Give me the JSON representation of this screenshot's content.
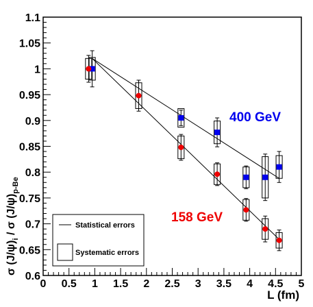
{
  "chart_data": {
    "type": "scatter",
    "xlabel": "L (fm)",
    "ylabel_parts": {
      "main": "σ (J/ψ)",
      "sub_i": "i",
      "mid": " / σ (J/ψ)",
      "sub_ref": "p-Be"
    },
    "xlim": [
      0,
      5
    ],
    "ylim": [
      0.6,
      1.1
    ],
    "x_ticks": [
      "0",
      "0.5",
      "1",
      "1.5",
      "2",
      "2.5",
      "3",
      "3.5",
      "4",
      "4.5",
      "5"
    ],
    "y_ticks": [
      "0.6",
      "0.65",
      "0.7",
      "0.75",
      "0.8",
      "0.85",
      "0.9",
      "0.95",
      "1",
      "1.05",
      "1.1"
    ],
    "legend": {
      "position": "bottom-left",
      "entries": [
        "Statistical errors",
        "Systematic errors"
      ]
    },
    "series": [
      {
        "name": "400 GeV",
        "color": "#0000ee",
        "marker": "square",
        "points": [
          {
            "x": 0.95,
            "y": 1.0,
            "stat": 0.035,
            "sys": 0.022
          },
          {
            "x": 2.67,
            "y": 0.905,
            "stat": 0.015,
            "sys": 0.018
          },
          {
            "x": 3.37,
            "y": 0.877,
            "stat": 0.028,
            "sys": 0.022
          },
          {
            "x": 3.93,
            "y": 0.79,
            "stat": 0.022,
            "sys": 0.02
          },
          {
            "x": 4.3,
            "y": 0.79,
            "stat": 0.045,
            "sys": 0.04
          },
          {
            "x": 4.57,
            "y": 0.81,
            "stat": 0.03,
            "sys": 0.022
          }
        ],
        "fit": [
          [
            0.95,
            1.02
          ],
          [
            4.57,
            0.788
          ]
        ]
      },
      {
        "name": "158 GeV",
        "color": "#ee0000",
        "marker": "circle",
        "points": [
          {
            "x": 0.88,
            "y": 1.0,
            "stat": 0.026,
            "sys": 0.02
          },
          {
            "x": 1.85,
            "y": 0.948,
            "stat": 0.03,
            "sys": 0.025
          },
          {
            "x": 2.67,
            "y": 0.848,
            "stat": 0.025,
            "sys": 0.022
          },
          {
            "x": 3.37,
            "y": 0.796,
            "stat": 0.022,
            "sys": 0.02
          },
          {
            "x": 3.93,
            "y": 0.727,
            "stat": 0.022,
            "sys": 0.02
          },
          {
            "x": 4.3,
            "y": 0.69,
            "stat": 0.025,
            "sys": 0.02
          },
          {
            "x": 4.57,
            "y": 0.668,
            "stat": 0.02,
            "sys": 0.015
          }
        ],
        "fit": [
          [
            0.95,
            1.02
          ],
          [
            4.57,
            0.67
          ]
        ]
      }
    ]
  }
}
